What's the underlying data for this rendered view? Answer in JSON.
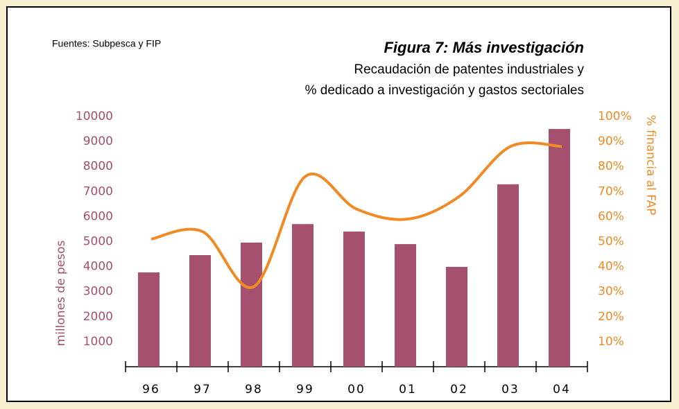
{
  "chart_data": {
    "type": "bar",
    "title": "Figura 7: Más investigación",
    "subtitle": [
      "Recaudación de patentes industriales y",
      "% dedicado a investigación y gastos sectoriales"
    ],
    "source": "Fuentes: Subpesca y FIP",
    "y_label": "millones de pesos",
    "y2_label": "% financia al FAP",
    "categories": [
      "96",
      "97",
      "98",
      "99",
      "00",
      "01",
      "02",
      "03",
      "04"
    ],
    "series": [
      {
        "type": "bar",
        "color": "#a5506f",
        "values": [
          3770,
          4460,
          4960,
          5700,
          5400,
          4900,
          3990,
          7290,
          9500
        ]
      },
      {
        "type": "line",
        "color": "#f08a24",
        "axis": "y2",
        "values": [
          51,
          54,
          32,
          76,
          63,
          59,
          68,
          88,
          88
        ]
      }
    ],
    "ylim": [
      0,
      10000
    ],
    "yticks": [
      1000,
      2000,
      3000,
      4000,
      5000,
      6000,
      7000,
      8000,
      9000,
      10000
    ],
    "y2lim": [
      0,
      100
    ],
    "y2ticks": [
      {
        "value": 10,
        "label": "10%"
      },
      {
        "value": 20,
        "label": "20%"
      },
      {
        "value": 30,
        "label": "30%"
      },
      {
        "value": 40,
        "label": "40%"
      },
      {
        "value": 50,
        "label": "50%"
      },
      {
        "value": 60,
        "label": "60%"
      },
      {
        "value": 70,
        "label": "70%"
      },
      {
        "value": 80,
        "label": "80%"
      },
      {
        "value": 90,
        "label": "90%"
      },
      {
        "value": 100,
        "label": "100%"
      }
    ]
  }
}
